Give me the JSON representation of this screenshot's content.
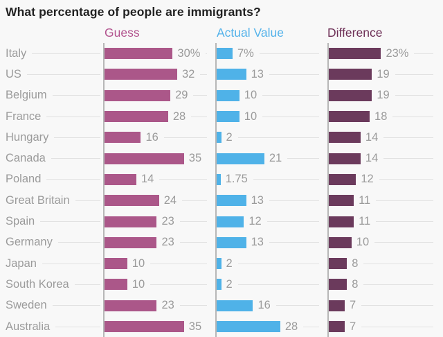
{
  "title": "What percentage of people are immigrants?",
  "chart_data": {
    "type": "bar",
    "orientation": "horizontal",
    "title": "What percentage of people are immigrants?",
    "unit": "%",
    "xlim": [
      0,
      35
    ],
    "grid": false,
    "legend_position": "column-headers-top",
    "categories": [
      "Italy",
      "US",
      "Belgium",
      "France",
      "Hungary",
      "Canada",
      "Poland",
      "Great Britain",
      "Spain",
      "Germany",
      "Japan",
      "South Korea",
      "Sweden",
      "Australia"
    ],
    "series": [
      {
        "name": "Guess",
        "color": "#ab5789",
        "header_color": "#b2538e",
        "values": [
          30,
          32,
          29,
          28,
          16,
          35,
          14,
          24,
          23,
          23,
          10,
          10,
          23,
          35
        ],
        "labels": [
          "30%",
          "32",
          "29",
          "28",
          "16",
          "35",
          "14",
          "24",
          "23",
          "23",
          "10",
          "10",
          "23",
          "35"
        ]
      },
      {
        "name": "Actual Value",
        "color": "#4fb2e8",
        "header_color": "#55b3ea",
        "values": [
          7,
          13,
          10,
          10,
          2,
          21,
          1.75,
          13,
          12,
          13,
          2,
          2,
          16,
          28
        ],
        "labels": [
          "7%",
          "13",
          "10",
          "10",
          "2",
          "21",
          "1.75",
          "13",
          "12",
          "13",
          "2",
          "2",
          "16",
          "28"
        ]
      },
      {
        "name": "Difference",
        "color": "#6b3a5c",
        "header_color": "#6d2f56",
        "values": [
          23,
          19,
          19,
          18,
          14,
          14,
          12,
          11,
          11,
          10,
          8,
          8,
          7,
          7
        ],
        "labels": [
          "23%",
          "19",
          "19",
          "18",
          "14",
          "14",
          "12",
          "11",
          "11",
          "10",
          "8",
          "8",
          "7",
          "7"
        ]
      }
    ]
  },
  "style": {
    "background": "#f8f8f8",
    "title_color": "#222222",
    "label_color": "#9b9b9b",
    "leader_line_color": "#e2e2e2",
    "axis_line_color": "#b7b7b7"
  }
}
